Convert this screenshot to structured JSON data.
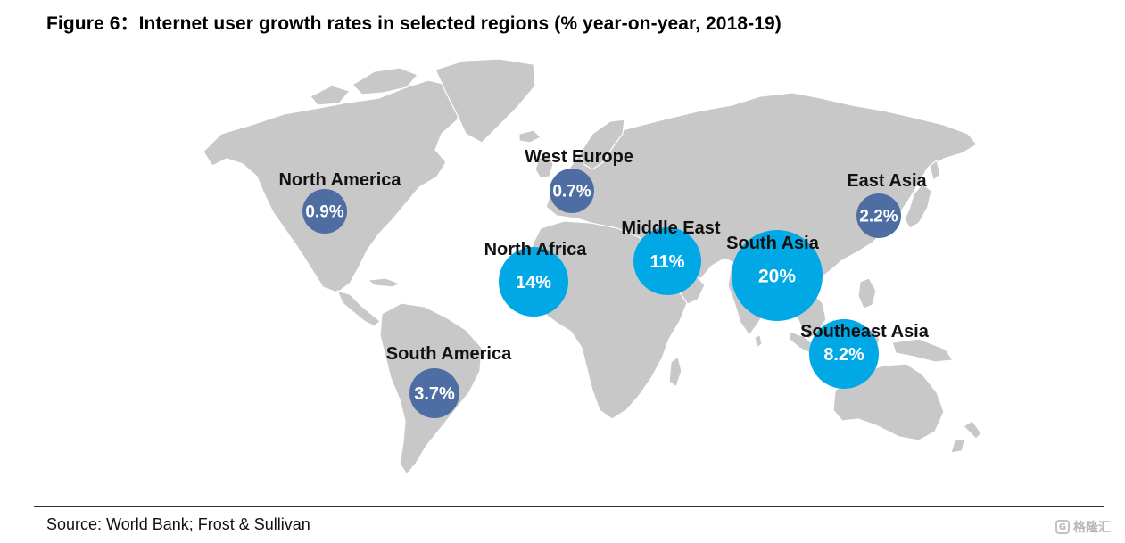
{
  "figure": {
    "title": "Figure 6：Internet user growth rates in selected regions (% year-on-year, 2018-19)",
    "source": "Source: World Bank; Frost & Sullivan",
    "watermark": "格隆汇"
  },
  "colors": {
    "land": "#c8c8c8",
    "border": "#ffffff",
    "bubble_dark": "#4e6ea3",
    "bubble_light": "#00a9e6"
  },
  "regions": [
    {
      "id": "north-america",
      "label": "North America",
      "value": 0.9,
      "display": "0.9%",
      "style": "dark"
    },
    {
      "id": "west-europe",
      "label": "West Europe",
      "value": 0.7,
      "display": "0.7%",
      "style": "dark"
    },
    {
      "id": "east-asia",
      "label": "East Asia",
      "value": 2.2,
      "display": "2.2%",
      "style": "dark"
    },
    {
      "id": "middle-east",
      "label": "Middle East",
      "value": 11,
      "display": "11%",
      "style": "light"
    },
    {
      "id": "north-africa",
      "label": "North Africa",
      "value": 14,
      "display": "14%",
      "style": "light"
    },
    {
      "id": "south-asia",
      "label": "South Asia",
      "value": 20,
      "display": "20%",
      "style": "light"
    },
    {
      "id": "southeast-asia",
      "label": "Southeast Asia",
      "value": 8.2,
      "display": "8.2%",
      "style": "light"
    },
    {
      "id": "south-america",
      "label": "South America",
      "value": 3.7,
      "display": "3.7%",
      "style": "dark"
    }
  ]
}
